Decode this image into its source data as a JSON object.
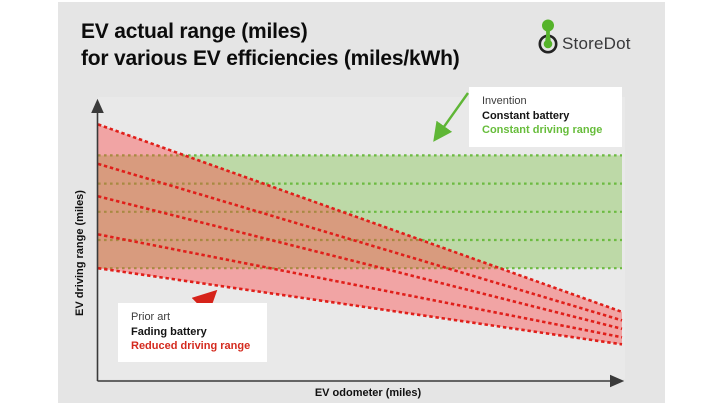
{
  "page": {
    "background": "#ffffff",
    "card_background": "#e5e5e5"
  },
  "header": {
    "title_line1": "EV actual range (miles)",
    "title_line2": "for various EV efficiencies (miles/kWh)"
  },
  "logo": {
    "text": "StoreDot",
    "icon_green": "#55b32a",
    "icon_ring": "#232323"
  },
  "chart": {
    "x_axis_label": "EV odometer (miles)",
    "y_axis_label": "EV driving range (miles)",
    "colors": {
      "green_fill": "rgba(122,193,67,0.40)",
      "green_line": "#6cbb41",
      "red_fill": "rgba(252,70,70,0.42)",
      "red_line": "#e01f1a",
      "axis": "#3a3a3a",
      "green_accent": "#5fb636",
      "red_accent": "#d6231a"
    },
    "annotations": {
      "invention": [
        "Invention",
        "Constant battery",
        "Constant driving range"
      ],
      "prior_art": [
        "Prior art",
        "Fading battery",
        "Reduced driving range"
      ]
    }
  },
  "chart_data": {
    "type": "line",
    "title": "EV actual range (miles) for various EV efficiencies (miles/kWh)",
    "xlabel": "EV odometer (miles)",
    "ylabel": "EV driving range (miles)",
    "grid": false,
    "axes_numeric": false,
    "x_range_relative": [
      0,
      100
    ],
    "y_range_relative": [
      0,
      100
    ],
    "invention_constant_range_lines": [
      80,
      70,
      60,
      50,
      40
    ],
    "prior_art_fading_lines": [
      {
        "start": 91,
        "end": 24.5
      },
      {
        "start": 77,
        "end": 21.5
      },
      {
        "start": 65.5,
        "end": 18.5
      },
      {
        "start": 52,
        "end": 15.5
      },
      {
        "start": 40,
        "end": 13
      }
    ],
    "bands": [
      {
        "name": "invention-constant-range-band",
        "between_lines": [
          80,
          40
        ],
        "fill": "green"
      },
      {
        "name": "prior-art-fading-band",
        "between_lines": [
          "first",
          "last"
        ],
        "fill": "red"
      }
    ],
    "callouts": [
      {
        "position": "top-right",
        "lines": [
          "Invention",
          "Constant battery",
          "Constant driving range"
        ],
        "arrow": "points down-left to green band"
      },
      {
        "position": "bottom-left",
        "lines": [
          "Prior art",
          "Fading battery",
          "Reduced driving range"
        ],
        "arrow": "points up-right to red band"
      }
    ]
  }
}
